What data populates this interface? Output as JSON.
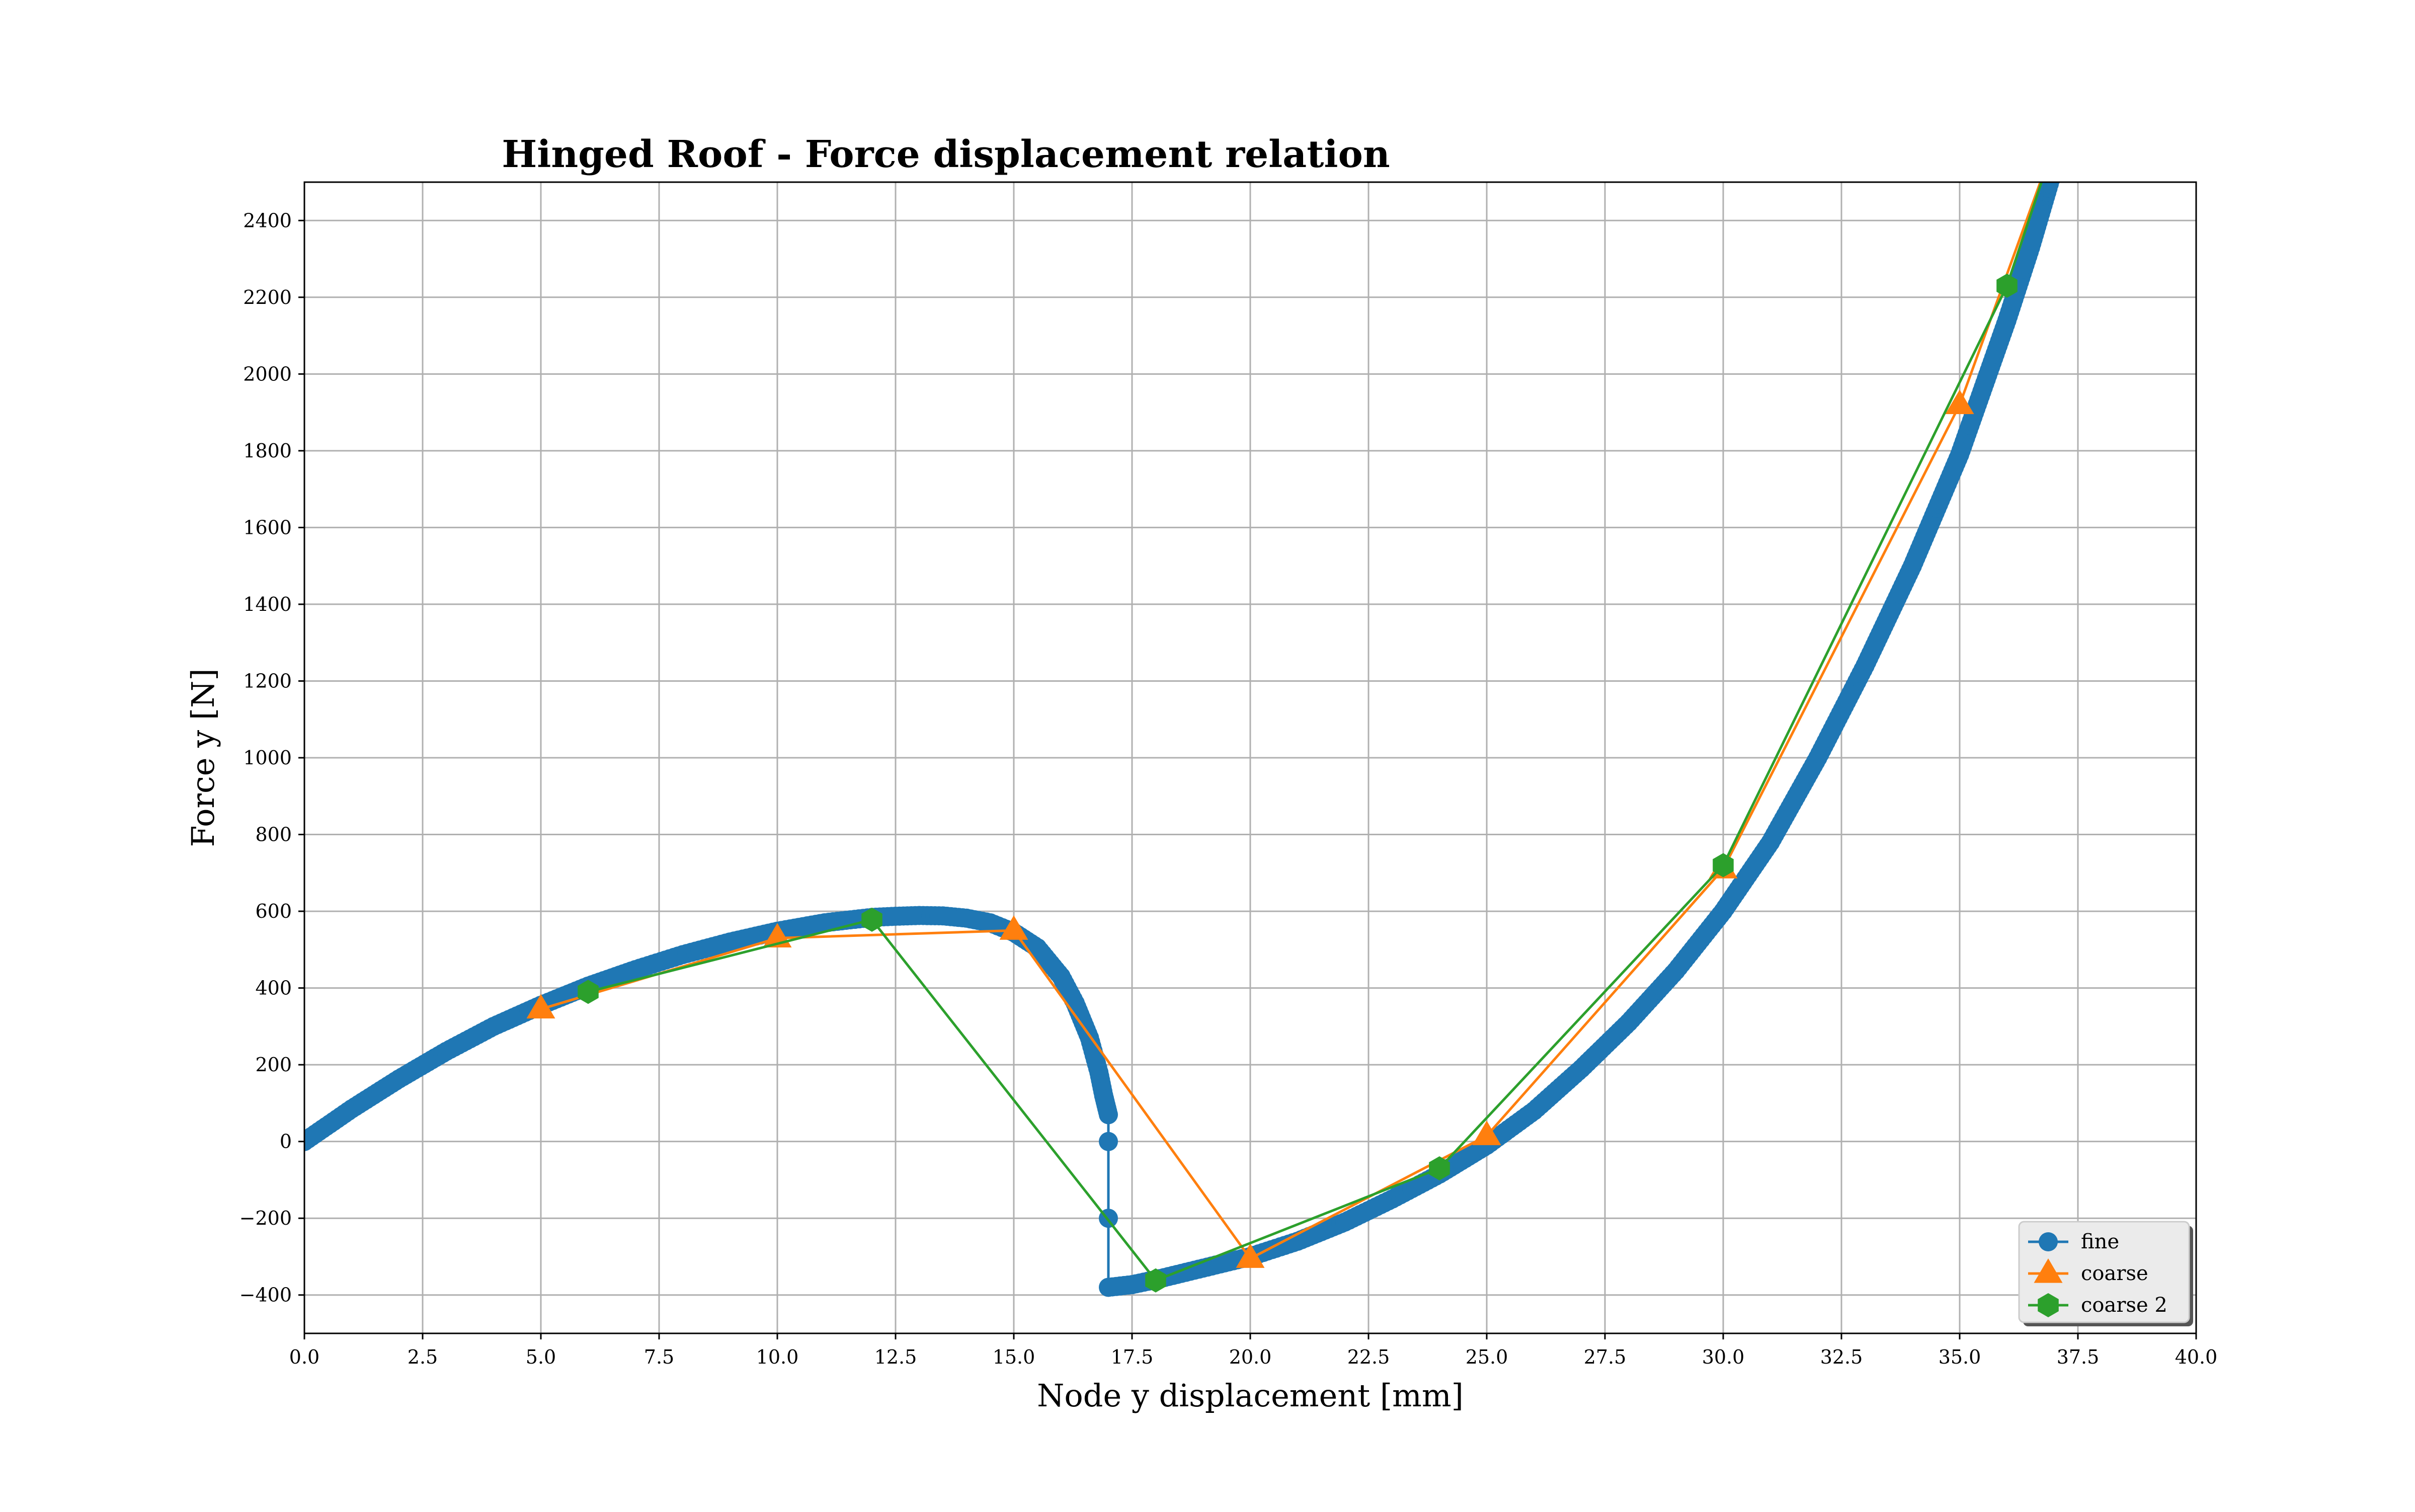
{
  "chart_data": {
    "type": "line",
    "title": "Hinged Roof - Force displacement relation",
    "xlabel": "Node y displacement [mm]",
    "ylabel": "Force y [N]",
    "xlim": [
      0,
      40
    ],
    "ylim": [
      -500,
      2500
    ],
    "grid": true,
    "legend_position": "lower-right",
    "x_ticks": [
      "0.0",
      "2.5",
      "5.0",
      "7.5",
      "10.0",
      "12.5",
      "15.0",
      "17.5",
      "20.0",
      "22.5",
      "25.0",
      "27.5",
      "30.0",
      "32.5",
      "35.0",
      "37.5",
      "40.0"
    ],
    "y_ticks": [
      "−400",
      "−200",
      "0",
      "200",
      "400",
      "600",
      "800",
      "1000",
      "1200",
      "1400",
      "1600",
      "1800",
      "2000",
      "2200",
      "2400"
    ],
    "series": [
      {
        "name": "fine",
        "color": "#1f77b4",
        "marker": "circle",
        "x": [
          0,
          1,
          2,
          3,
          4,
          5,
          6,
          7,
          8,
          9,
          10,
          11,
          12,
          12.5,
          13,
          13.5,
          14,
          14.5,
          15,
          15.5,
          16,
          16.3,
          16.6,
          16.8,
          16.9,
          16.95,
          17,
          17,
          17,
          17,
          17.5,
          18,
          19,
          20,
          21,
          22,
          23,
          24,
          25,
          26,
          27,
          28,
          29,
          30,
          31,
          32,
          33,
          34,
          35,
          36,
          36.5,
          37
        ],
        "y": [
          0,
          85,
          163,
          235,
          300,
          355,
          405,
          448,
          487,
          520,
          548,
          570,
          584,
          587,
          589,
          588,
          582,
          570,
          545,
          505,
          430,
          360,
          270,
          180,
          120,
          95,
          70,
          0,
          -200,
          -380,
          -373,
          -360,
          -330,
          -300,
          -260,
          -210,
          -150,
          -85,
          -10,
          80,
          190,
          310,
          445,
          600,
          780,
          1000,
          1240,
          1500,
          1790,
          2140,
          2330,
          2540
        ]
      },
      {
        "name": "coarse",
        "color": "#ff7f0e",
        "marker": "triangle",
        "x": [
          5,
          10,
          15,
          20,
          25,
          30,
          35,
          37
        ],
        "y": [
          345,
          530,
          550,
          -305,
          15,
          710,
          1920,
          2600
        ]
      },
      {
        "name": "coarse 2",
        "color": "#2ca02c",
        "marker": "hexagon",
        "x": [
          6,
          12,
          18,
          24,
          30,
          36,
          37
        ],
        "y": [
          390,
          578,
          -362,
          -70,
          720,
          2230,
          2600
        ]
      }
    ]
  }
}
